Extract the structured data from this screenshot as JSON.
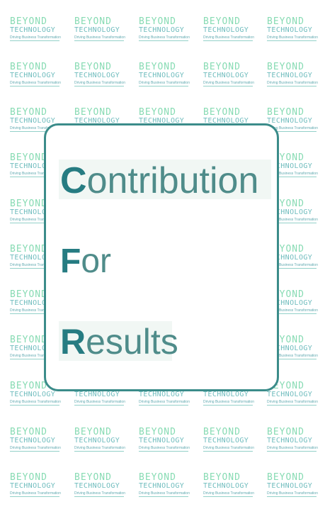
{
  "watermark": {
    "line1": "BEYOND",
    "line2": "TECHNOLOGY",
    "line3": "Driving Business Transformation",
    "colors": {
      "line1": "#5fcf9a",
      "line2": "#3fa6a8",
      "line3": "#2d8d96"
    }
  },
  "card": {
    "border_color": "#3b8c8a",
    "words": [
      {
        "cap": "C",
        "rest": "ontribution"
      },
      {
        "cap": "F",
        "rest": "or"
      },
      {
        "cap": "R",
        "rest": "esults"
      }
    ]
  }
}
